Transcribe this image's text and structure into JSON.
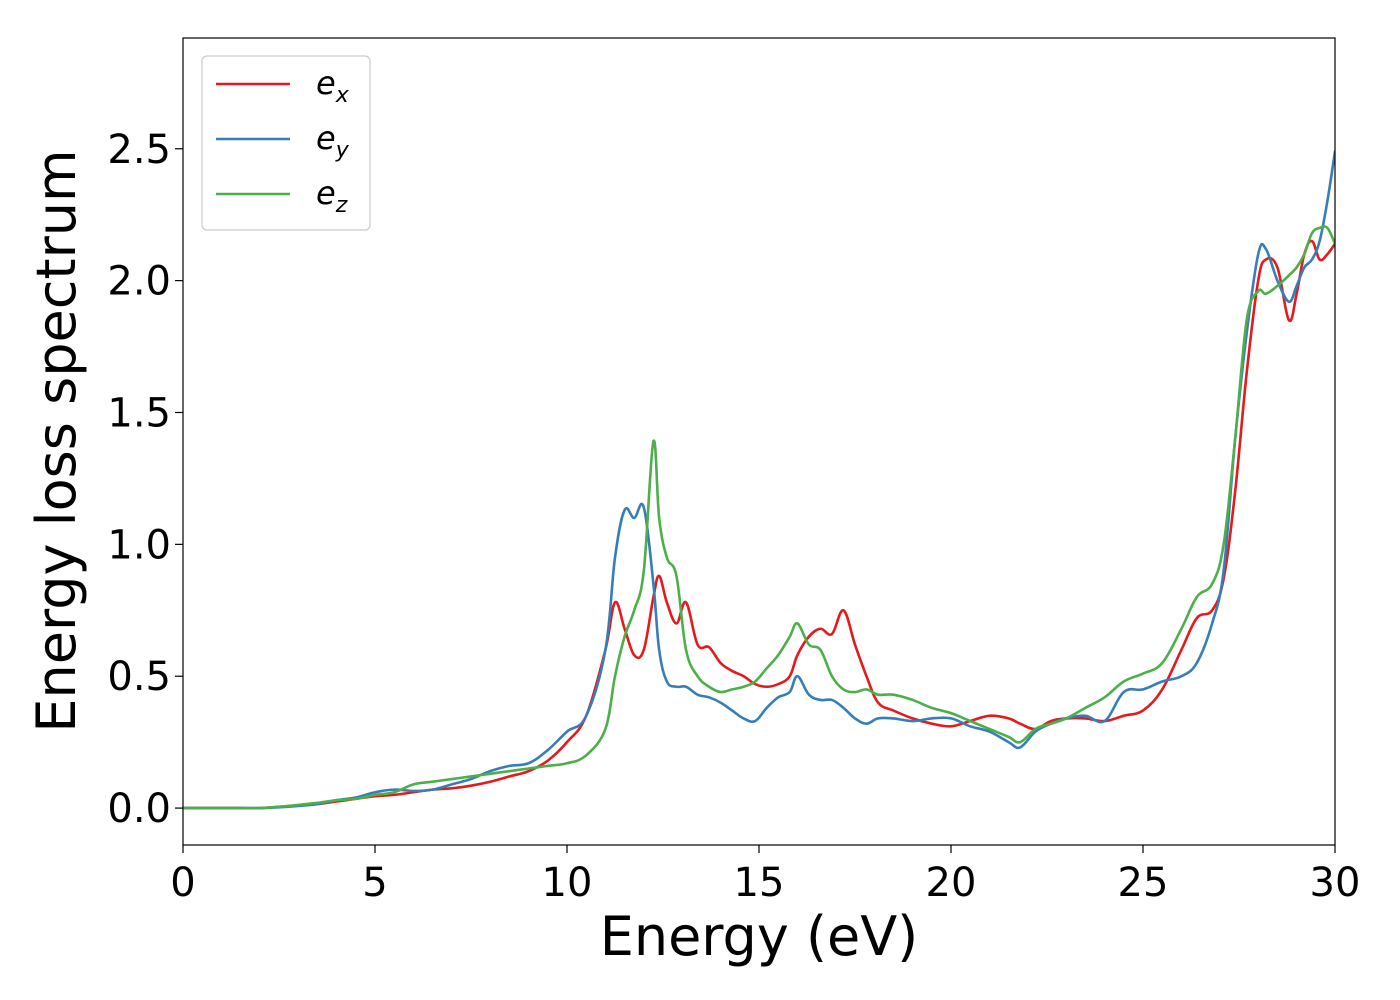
{
  "chart_data": {
    "type": "line",
    "xlabel": "Energy (eV)",
    "ylabel": "Energy loss spectrum",
    "xlim": [
      0,
      30
    ],
    "ylim": [
      -0.14,
      2.92
    ],
    "x_ticks": [
      0,
      5,
      10,
      15,
      20,
      25,
      30
    ],
    "x_tick_labels": [
      "0",
      "5",
      "10",
      "15",
      "20",
      "25",
      "30"
    ],
    "y_ticks": [
      0.0,
      0.5,
      1.0,
      1.5,
      2.0,
      2.5
    ],
    "y_tick_labels": [
      "0.0",
      "0.5",
      "1.0",
      "1.5",
      "2.0",
      "2.5"
    ],
    "grid": false,
    "legend_position": "top-left",
    "x": [
      0,
      0.5,
      1,
      1.5,
      2,
      2.5,
      3,
      3.5,
      4,
      4.5,
      5,
      5.5,
      6,
      6.5,
      7,
      7.5,
      8,
      8.5,
      9,
      9.5,
      10,
      10.5,
      11,
      11.25,
      11.5,
      11.75,
      12,
      12.25,
      12.4,
      12.6,
      12.85,
      13.1,
      13.4,
      13.7,
      14,
      14.3,
      14.6,
      14.9,
      15.2,
      15.5,
      15.8,
      16,
      16.3,
      16.6,
      16.9,
      17.2,
      17.5,
      17.8,
      18.1,
      18.5,
      19,
      19.5,
      20,
      20.5,
      21,
      21.5,
      21.8,
      22.2,
      22.6,
      23,
      23.5,
      24,
      24.5,
      25,
      25.5,
      26,
      26.4,
      26.8,
      27.1,
      27.4,
      27.7,
      28,
      28.2,
      28.5,
      28.8,
      29,
      29.2,
      29.4,
      29.6,
      29.8,
      30
    ],
    "series": [
      {
        "name": "e",
        "name_subscript": "x",
        "color": "#e41a1c",
        "values": [
          0,
          0,
          0,
          0,
          0,
          0.005,
          0.01,
          0.015,
          0.025,
          0.035,
          0.045,
          0.05,
          0.06,
          0.07,
          0.075,
          0.085,
          0.1,
          0.12,
          0.14,
          0.18,
          0.25,
          0.35,
          0.6,
          0.78,
          0.68,
          0.58,
          0.6,
          0.8,
          0.88,
          0.78,
          0.7,
          0.78,
          0.62,
          0.61,
          0.55,
          0.52,
          0.5,
          0.47,
          0.46,
          0.47,
          0.5,
          0.58,
          0.65,
          0.68,
          0.66,
          0.75,
          0.62,
          0.5,
          0.4,
          0.37,
          0.34,
          0.32,
          0.31,
          0.33,
          0.35,
          0.34,
          0.32,
          0.3,
          0.33,
          0.34,
          0.34,
          0.33,
          0.35,
          0.37,
          0.45,
          0.6,
          0.72,
          0.75,
          0.87,
          1.2,
          1.65,
          2.0,
          2.08,
          2.05,
          1.85,
          1.95,
          2.1,
          2.15,
          2.08,
          2.1,
          2.14
        ]
      },
      {
        "name": "e",
        "name_subscript": "y",
        "color": "#377eb8",
        "values": [
          0,
          0,
          0,
          0,
          0,
          0.003,
          0.008,
          0.015,
          0.03,
          0.04,
          0.06,
          0.07,
          0.065,
          0.07,
          0.09,
          0.11,
          0.14,
          0.16,
          0.17,
          0.22,
          0.29,
          0.35,
          0.6,
          0.95,
          1.13,
          1.1,
          1.14,
          0.85,
          0.6,
          0.48,
          0.46,
          0.46,
          0.43,
          0.42,
          0.4,
          0.37,
          0.34,
          0.33,
          0.38,
          0.42,
          0.44,
          0.5,
          0.43,
          0.41,
          0.41,
          0.38,
          0.34,
          0.32,
          0.34,
          0.34,
          0.33,
          0.34,
          0.34,
          0.31,
          0.29,
          0.25,
          0.23,
          0.29,
          0.32,
          0.34,
          0.35,
          0.33,
          0.44,
          0.45,
          0.48,
          0.5,
          0.55,
          0.7,
          0.9,
          1.4,
          1.8,
          2.1,
          2.12,
          2.0,
          1.92,
          1.98,
          2.05,
          2.08,
          2.15,
          2.3,
          2.49
        ]
      },
      {
        "name": "e",
        "name_subscript": "z",
        "color": "#4daf4a",
        "values": [
          0,
          0,
          0,
          0,
          0,
          0.005,
          0.012,
          0.02,
          0.03,
          0.035,
          0.05,
          0.06,
          0.09,
          0.1,
          0.11,
          0.12,
          0.13,
          0.14,
          0.15,
          0.16,
          0.17,
          0.2,
          0.3,
          0.5,
          0.65,
          0.75,
          0.9,
          1.39,
          1.1,
          0.95,
          0.88,
          0.6,
          0.5,
          0.46,
          0.44,
          0.45,
          0.46,
          0.48,
          0.53,
          0.58,
          0.65,
          0.7,
          0.62,
          0.6,
          0.5,
          0.45,
          0.44,
          0.45,
          0.43,
          0.43,
          0.41,
          0.38,
          0.36,
          0.33,
          0.3,
          0.27,
          0.25,
          0.3,
          0.32,
          0.34,
          0.38,
          0.42,
          0.48,
          0.51,
          0.55,
          0.68,
          0.8,
          0.85,
          1.0,
          1.4,
          1.85,
          1.96,
          1.95,
          1.98,
          2.02,
          2.05,
          2.1,
          2.18,
          2.2,
          2.2,
          2.14
        ]
      }
    ]
  }
}
